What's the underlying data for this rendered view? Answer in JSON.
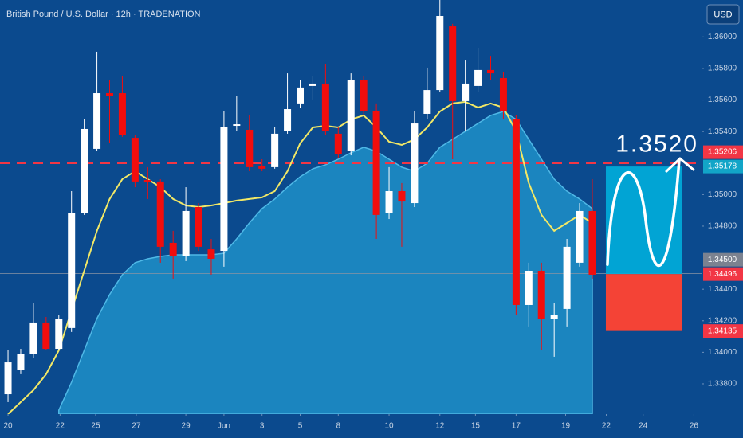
{
  "chart_data": {
    "type": "candlestick",
    "title": "British Pound / U.S. Dollar · 12h · TRADENATION",
    "currency": "USD",
    "x": [
      0,
      1,
      2,
      3,
      4,
      5,
      6,
      7,
      8,
      9,
      10,
      11,
      12,
      13,
      14,
      15,
      16,
      17,
      18,
      19,
      20,
      21,
      22,
      23,
      24,
      25,
      26,
      27,
      28,
      29,
      30,
      31,
      32,
      33,
      34,
      35,
      36,
      37,
      38,
      39,
      40,
      41,
      42,
      43,
      44,
      45,
      46
    ],
    "open": [
      1.33734,
      1.33886,
      1.33987,
      1.34189,
      1.34022,
      1.34154,
      1.34881,
      1.3529,
      1.35643,
      1.35643,
      1.3536,
      1.35093,
      1.35083,
      1.34694,
      1.34608,
      1.34921,
      1.34653,
      1.34643,
      1.35436,
      1.35411,
      1.35179,
      1.35174,
      1.35401,
      1.35578,
      1.35689,
      1.35704,
      1.35386,
      1.35275,
      1.35729,
      1.35527,
      1.34881,
      1.35022,
      1.34946,
      1.35512,
      1.35663,
      1.36067,
      1.35593,
      1.35689,
      1.3579,
      1.35739,
      1.35477,
      1.343,
      1.34517,
      1.34214,
      1.34275,
      1.34568,
      1.34896
    ],
    "high": [
      1.34012,
      1.34022,
      1.34315,
      1.34224,
      1.34239,
      1.35022,
      1.35477,
      1.35906,
      1.35729,
      1.35754,
      1.35376,
      1.35174,
      1.35098,
      1.3477,
      1.35047,
      1.34946,
      1.34719,
      1.35527,
      1.35628,
      1.35502,
      1.35224,
      1.35426,
      1.35769,
      1.35729,
      1.35754,
      1.3583,
      1.35426,
      1.35769,
      1.35754,
      1.35578,
      1.35174,
      1.35073,
      1.35527,
      1.35805,
      1.36234,
      1.36083,
      1.35855,
      1.35931,
      1.3588,
      1.35779,
      1.35502,
      1.34568,
      1.34568,
      1.34315,
      1.34719,
      1.34946,
      1.35098
    ],
    "low": [
      1.33684,
      1.33861,
      1.33962,
      1.34012,
      1.34012,
      1.34129,
      1.34871,
      1.35275,
      1.35325,
      1.35366,
      1.35047,
      1.34972,
      1.34568,
      1.34467,
      1.34578,
      1.34643,
      1.34492,
      1.34543,
      1.35401,
      1.35148,
      1.35148,
      1.35164,
      1.35386,
      1.35552,
      1.35603,
      1.35376,
      1.35234,
      1.35249,
      1.35502,
      1.34719,
      1.34845,
      1.34669,
      1.34921,
      1.35477,
      1.35653,
      1.35224,
      1.35401,
      1.35653,
      1.35729,
      1.35477,
      1.34239,
      1.34164,
      1.34012,
      1.33972,
      1.34164,
      1.34543,
      1.34467
    ],
    "close": [
      1.33936,
      1.33987,
      1.34189,
      1.34022,
      1.34214,
      1.34881,
      1.35416,
      1.35643,
      1.35628,
      1.35376,
      1.35083,
      1.35078,
      1.34669,
      1.34608,
      1.34896,
      1.34669,
      1.34593,
      1.35426,
      1.35446,
      1.35174,
      1.35164,
      1.35386,
      1.35542,
      1.35679,
      1.35704,
      1.35401,
      1.35259,
      1.35729,
      1.35527,
      1.34871,
      1.35022,
      1.34956,
      1.35451,
      1.35663,
      1.36133,
      1.35593,
      1.35704,
      1.3579,
      1.35769,
      1.35527,
      1.343,
      1.34517,
      1.34214,
      1.34239,
      1.34669,
      1.34896,
      1.34492
    ],
    "up_color": "#ffffff",
    "down_color": "#f20d0d",
    "moving_average": {
      "color": "#f2e866",
      "values": [
        1.33608,
        1.33684,
        1.3376,
        1.33861,
        1.34012,
        1.34265,
        1.34517,
        1.3477,
        1.34972,
        1.35098,
        1.35148,
        1.35098,
        1.35047,
        1.34972,
        1.34931,
        1.34921,
        1.34931,
        1.34946,
        1.34962,
        1.34972,
        1.34982,
        1.35022,
        1.35148,
        1.35325,
        1.35426,
        1.35436,
        1.35426,
        1.35477,
        1.35502,
        1.35426,
        1.35335,
        1.35315,
        1.3535,
        1.35426,
        1.35527,
        1.35578,
        1.35588,
        1.35552,
        1.35578,
        1.35552,
        1.35401,
        1.35073,
        1.34871,
        1.3477,
        1.3482,
        1.34871,
        1.3482
      ]
    },
    "area": {
      "color": "#1f8fc8",
      "values": [
        null,
        null,
        null,
        null,
        1.33633,
        1.3381,
        1.34012,
        1.34214,
        1.34366,
        1.34492,
        1.34568,
        1.34593,
        1.34608,
        1.34618,
        1.34618,
        1.34618,
        1.34618,
        1.34628,
        1.34719,
        1.3482,
        1.34911,
        1.34972,
        1.35047,
        1.35113,
        1.35164,
        1.35189,
        1.35224,
        1.35265,
        1.353,
        1.35275,
        1.35224,
        1.35174,
        1.35148,
        1.35199,
        1.353,
        1.3535,
        1.35401,
        1.35451,
        1.35502,
        1.35527,
        1.35477,
        1.3535,
        1.35224,
        1.35098,
        1.35022,
        1.34972,
        1.34911
      ]
    },
    "xlim": [
      -0.63,
      54.6
    ],
    "ylim": [
      1.33608,
      1.36234
    ],
    "xticks": [
      {
        "value": 0,
        "label": "20"
      },
      {
        "value": 4.1,
        "label": "22"
      },
      {
        "value": 6.9,
        "label": "25"
      },
      {
        "value": 10.1,
        "label": "27"
      },
      {
        "value": 14,
        "label": "29"
      },
      {
        "value": 17,
        "label": "Jun"
      },
      {
        "value": 20,
        "label": "3"
      },
      {
        "value": 23,
        "label": "5"
      },
      {
        "value": 26,
        "label": "8"
      },
      {
        "value": 30,
        "label": "10"
      },
      {
        "value": 34,
        "label": "12"
      },
      {
        "value": 36.8,
        "label": "15"
      },
      {
        "value": 40,
        "label": "17"
      },
      {
        "value": 43.9,
        "label": "19"
      },
      {
        "value": 47.1,
        "label": "22"
      },
      {
        "value": 50,
        "label": "24"
      },
      {
        "value": 54,
        "label": "26"
      }
    ],
    "yticks": [
      {
        "value": 1.338,
        "label": "1.33800"
      },
      {
        "value": 1.34,
        "label": "1.34000"
      },
      {
        "value": 1.342,
        "label": "1.34200"
      },
      {
        "value": 1.344,
        "label": "1.34400"
      },
      {
        "value": 1.348,
        "label": "1.34800"
      },
      {
        "value": 1.35,
        "label": "1.35000"
      },
      {
        "value": 1.354,
        "label": "1.35400"
      },
      {
        "value": 1.356,
        "label": "1.35600"
      },
      {
        "value": 1.358,
        "label": "1.35800"
      },
      {
        "value": 1.36,
        "label": "1.36000"
      }
    ],
    "price_tags": [
      {
        "value": 1.35206,
        "label": "1.35206",
        "color": "#f23645"
      },
      {
        "value": 1.35178,
        "label": "1.35178",
        "color": "#12a5c8"
      },
      {
        "value": 1.345,
        "label": "1.34500",
        "color": "#7b8290"
      },
      {
        "value": 1.34496,
        "label": "1.34496",
        "color": "#f23645"
      },
      {
        "value": 1.34135,
        "label": "1.34135",
        "color": "#f23645"
      }
    ],
    "target_line": {
      "value": 1.352,
      "label": "1.3520",
      "color": "#f23645"
    },
    "position": {
      "target_color": "#00aedb",
      "stop_color": "#f44336"
    }
  }
}
